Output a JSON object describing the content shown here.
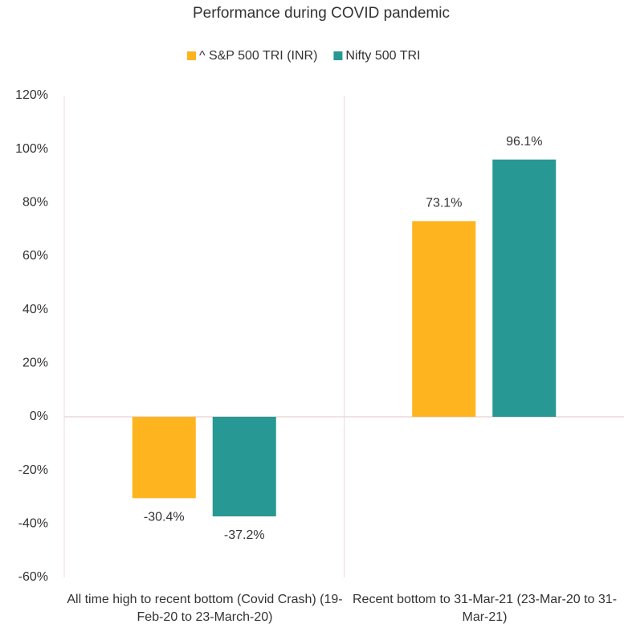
{
  "chart_data": {
    "type": "bar",
    "title": "Performance during COVID pandemic",
    "categories": [
      "All time high to recent bottom (Covid Crash) (19-Feb-20 to 23-March-20)",
      "Recent bottom to 31-Mar-21 (23-Mar-20 to 31-Mar-21)"
    ],
    "series": [
      {
        "name": "^ S&P 500 TRI (INR)",
        "color": "#fdb41f",
        "values": [
          -30.4,
          73.1
        ],
        "value_labels": [
          "-30.4%",
          "73.1%"
        ]
      },
      {
        "name": "Nifty 500 TRI",
        "color": "#279893",
        "values": [
          -37.2,
          96.1
        ],
        "value_labels": [
          "-37.2%",
          "96.1%"
        ]
      }
    ],
    "ylim": [
      -60,
      120
    ],
    "yticks": [
      {
        "value": -60,
        "label": "-60%"
      },
      {
        "value": -40,
        "label": "-40%"
      },
      {
        "value": -20,
        "label": "-20%"
      },
      {
        "value": 0,
        "label": "0%"
      },
      {
        "value": 20,
        "label": "20%"
      },
      {
        "value": 40,
        "label": "40%"
      },
      {
        "value": 60,
        "label": "60%"
      },
      {
        "value": 80,
        "label": "80%"
      },
      {
        "value": 100,
        "label": "100%"
      },
      {
        "value": 120,
        "label": "120%"
      }
    ],
    "legend": "top"
  }
}
